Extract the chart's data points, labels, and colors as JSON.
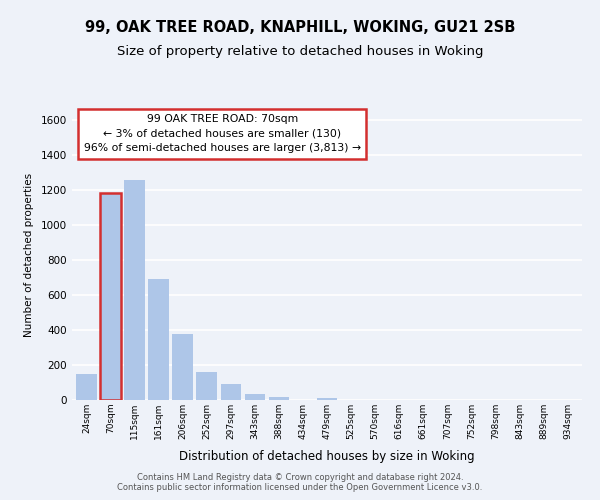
{
  "title1": "99, OAK TREE ROAD, KNAPHILL, WOKING, GU21 2SB",
  "title2": "Size of property relative to detached houses in Woking",
  "xlabel": "Distribution of detached houses by size in Woking",
  "ylabel": "Number of detached properties",
  "bin_labels": [
    "24sqm",
    "70sqm",
    "115sqm",
    "161sqm",
    "206sqm",
    "252sqm",
    "297sqm",
    "343sqm",
    "388sqm",
    "434sqm",
    "479sqm",
    "525sqm",
    "570sqm",
    "616sqm",
    "661sqm",
    "707sqm",
    "752sqm",
    "798sqm",
    "843sqm",
    "889sqm",
    "934sqm"
  ],
  "bar_values": [
    150,
    1185,
    1260,
    690,
    375,
    160,
    92,
    35,
    20,
    0,
    10,
    0,
    0,
    0,
    0,
    0,
    0,
    0,
    0,
    0,
    0
  ],
  "bar_color": "#aec6e8",
  "highlight_bar_index": 1,
  "highlight_color": "#d32f2f",
  "annotation_box_text": "99 OAK TREE ROAD: 70sqm\n← 3% of detached houses are smaller (130)\n96% of semi-detached houses are larger (3,813) →",
  "ylim": [
    0,
    1660
  ],
  "yticks": [
    0,
    200,
    400,
    600,
    800,
    1000,
    1200,
    1400,
    1600
  ],
  "footer1": "Contains HM Land Registry data © Crown copyright and database right 2024.",
  "footer2": "Contains public sector information licensed under the Open Government Licence v3.0.",
  "bg_color": "#eef2f9",
  "grid_color": "#ffffff",
  "title_fontsize": 10.5,
  "subtitle_fontsize": 9.5
}
